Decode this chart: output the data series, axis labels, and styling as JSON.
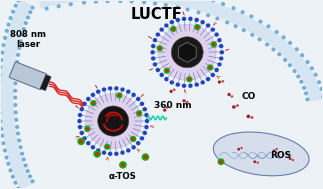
{
  "bg_color": "#edf2f7",
  "title": "LUCTF",
  "label_808": "808 nm\nlaser",
  "label_360": "360 nm",
  "label_atos": "α-TOS",
  "label_co": "CO",
  "label_ros": "ROS",
  "membrane_color": "#c8ddf0",
  "membrane_head_color": "#6aaad4",
  "nanoparticle_shell_color": "#dcc8ea",
  "nanoparticle_core_color": "#1a1a1a",
  "green_dot_outer": "#10b010",
  "green_dot_inner": "#e02020",
  "spike_color": "#1a3a9a",
  "spike_head_color": "#2244bb"
}
